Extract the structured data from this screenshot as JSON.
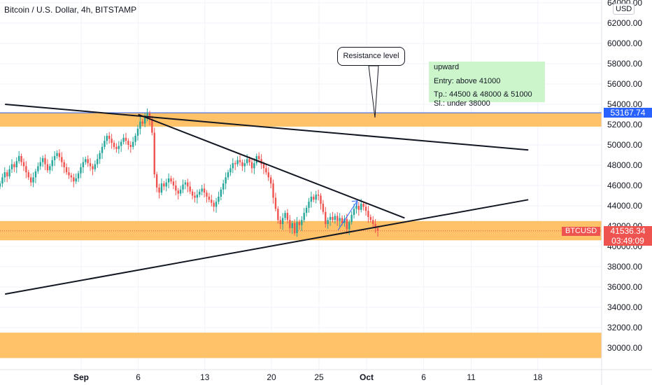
{
  "header": {
    "title": "Bitcoin / U.S. Dollar, 4h, BITSTAMP",
    "unit": "USD"
  },
  "colors": {
    "zone": "#ffb74d",
    "up": "#26a69a",
    "down": "#ef5350",
    "price_tag": "#ef5350",
    "resistance_tag": "#2962ff",
    "annotation_bg": "#ccf5cc",
    "arrow": "#2962ff"
  },
  "annotations": {
    "plan": {
      "direction": "upward",
      "entry": "Entry: above 41000",
      "tp": "Tp.:  44500 &  48000 & 51000",
      "sl": "Sl.: under 38000"
    },
    "callout": "Resistance level"
  },
  "price_tags": {
    "resistance": "53167.74",
    "symbol": "BTCUSD",
    "last": "41536.34",
    "countdown": "03:49:09"
  },
  "chart_data": {
    "type": "candlestick",
    "title": "Bitcoin / U.S. Dollar, 4h, BITSTAMP",
    "ylim": [
      29000,
      64500
    ],
    "y_ticks": [
      30000,
      32000,
      34000,
      36000,
      38000,
      40000,
      42000,
      44000,
      46000,
      48000,
      50000,
      52000,
      54000,
      56000,
      58000,
      60000,
      62000,
      64000
    ],
    "y_tick_labels": [
      "30000.00",
      "32000.00",
      "34000.00",
      "36000.00",
      "38000.00",
      "40000.00",
      "42000.00",
      "44000.00",
      "46000.00",
      "48000.00",
      "50000.00",
      "52000.00",
      "54000.00",
      "56000.00",
      "58000.00",
      "60000.00",
      "62000.00",
      "64000.00"
    ],
    "x_ticks": [
      "Sep",
      "6",
      "13",
      "20",
      "25",
      "Oct",
      "6",
      "11",
      "18"
    ],
    "grid": true,
    "zones": [
      {
        "from": 51800,
        "to": 53200
      },
      {
        "from": 40600,
        "to": 42500
      },
      {
        "from": 29000,
        "to": 31500
      }
    ],
    "resistance_line": 53167.74,
    "last_price": 41536.34,
    "trendlines": [
      {
        "from": [
          "Aug 24",
          54000
        ],
        "to": [
          "Oct 18",
          49500
        ]
      },
      {
        "from": [
          "Sep 7",
          53000
        ],
        "to": [
          "Oct 5",
          42800
        ]
      },
      {
        "from": [
          "Aug 24",
          35300
        ],
        "to": [
          "Oct 18",
          44600
        ]
      }
    ],
    "projection_arrow": {
      "from": [
        "Sep 28",
        41600
      ],
      "to": [
        "Sep 29",
        44500
      ]
    },
    "candles_close": [
      46200,
      46800,
      47300,
      46900,
      47600,
      48100,
      47800,
      48400,
      48900,
      48300,
      47900,
      47300,
      46800,
      46300,
      46800,
      47400,
      47900,
      48300,
      48700,
      48100,
      47500,
      47900,
      48500,
      48900,
      49200,
      48800,
      48300,
      47800,
      47300,
      47000,
      46800,
      46400,
      46700,
      47200,
      47800,
      48300,
      48600,
      48200,
      47900,
      47600,
      48100,
      48600,
      49200,
      49800,
      50400,
      50900,
      50600,
      50200,
      49800,
      49600,
      49900,
      50300,
      50700,
      50400,
      50000,
      49800,
      50300,
      50900,
      51600,
      52300,
      52100,
      52800,
      53100,
      52500,
      51200,
      47100,
      45800,
      45300,
      46200,
      45900,
      46300,
      46700,
      46400,
      46000,
      45500,
      45200,
      45600,
      46100,
      46300,
      45900,
      45400,
      45000,
      44800,
      45100,
      45400,
      45700,
      45300,
      44900,
      44600,
      44300,
      43900,
      44400,
      44900,
      45600,
      46200,
      46800,
      47300,
      47700,
      48200,
      48100,
      48500,
      48300,
      47900,
      48200,
      48600,
      48300,
      47700,
      48200,
      48900,
      48600,
      48100,
      47700,
      47300,
      46800,
      46200,
      44800,
      43700,
      42600,
      42200,
      42800,
      43300,
      42600,
      41800,
      42300,
      41300,
      42400,
      42100,
      42600,
      43300,
      43800,
      44400,
      44900,
      44600,
      45100,
      45000,
      44200,
      43400,
      42200,
      42600,
      42900,
      42600,
      43000,
      42500,
      42800,
      42300,
      42700,
      41700,
      42400,
      43100,
      43700,
      44000,
      43600,
      44200,
      43900,
      43500,
      42900,
      42600,
      42200,
      41800,
      41536
    ]
  }
}
